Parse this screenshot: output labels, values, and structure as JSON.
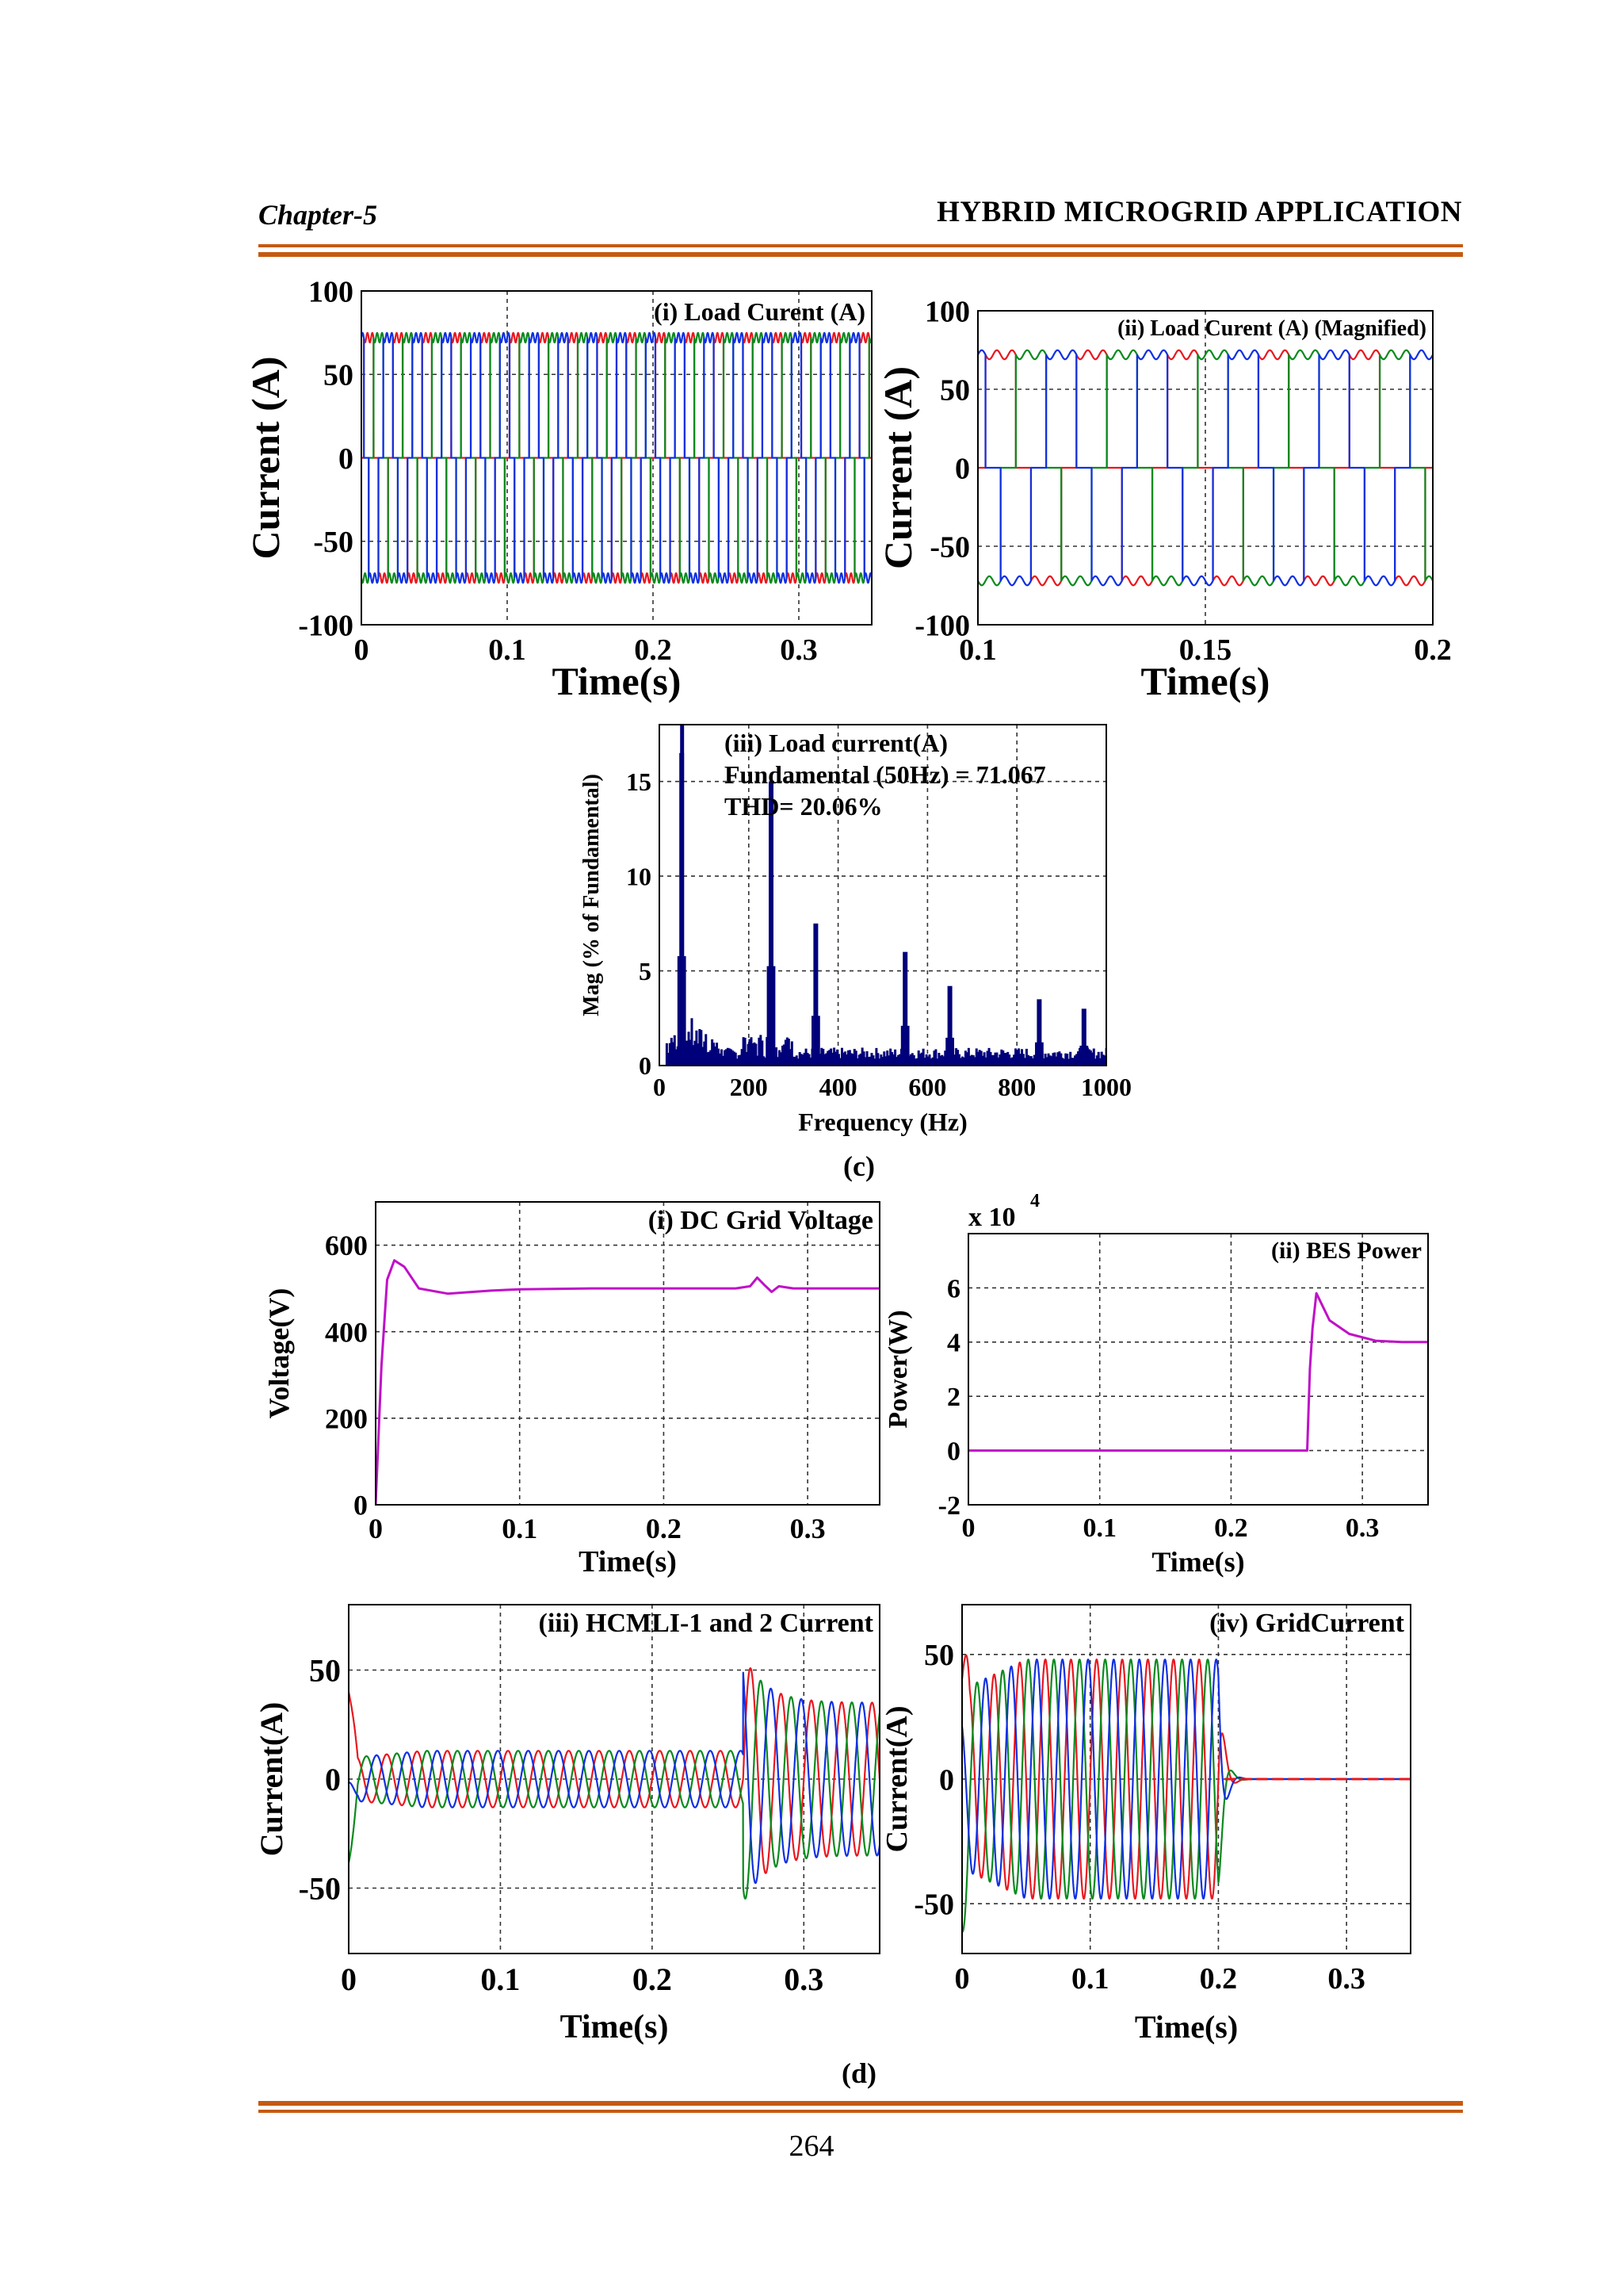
{
  "header": {
    "chapter": "Chapter-5",
    "title": "HYBRID MICROGRID APPLICATION"
  },
  "captions": {
    "c": "(c)",
    "d": "(d)"
  },
  "page_number": "264",
  "colors": {
    "red": "#e8171f",
    "green": "#0a8a1e",
    "blue": "#1030e0",
    "magenta": "#c010c8",
    "navy": "#00007a",
    "rule": "#c55a11"
  },
  "chart_data": [
    {
      "id": "load_current",
      "type": "line",
      "title": "(i) Load Curent (A)",
      "xlabel": "Time(s)",
      "ylabel": "Current (A)",
      "xlim": [
        0,
        0.35
      ],
      "ylim": [
        -100,
        100
      ],
      "xticks": [
        "0",
        "0.1",
        "0.2",
        "0.3"
      ],
      "yticks": [
        "100",
        "50",
        "0",
        "-50",
        "-100"
      ],
      "grid": true,
      "series": [
        {
          "color": "red",
          "waveform": "quasi-square",
          "amplitude": 72,
          "frequency_hz": 50,
          "phase_deg": 0
        },
        {
          "color": "green",
          "waveform": "quasi-square",
          "amplitude": 72,
          "frequency_hz": 50,
          "phase_deg": -120
        },
        {
          "color": "blue",
          "waveform": "quasi-square",
          "amplitude": 72,
          "frequency_hz": 50,
          "phase_deg": 120
        }
      ]
    },
    {
      "id": "load_current_magnified",
      "type": "line",
      "title": "(ii) Load Curent (A) (Magnified)",
      "xlabel": "Time(s)",
      "ylabel": "Current (A)",
      "xlim": [
        0.1,
        0.2
      ],
      "ylim": [
        -100,
        100
      ],
      "xticks": [
        "0.1",
        "0.15",
        "0.2"
      ],
      "yticks": [
        "100",
        "50",
        "0",
        "-50",
        "-100"
      ],
      "grid": true,
      "series": [
        {
          "color": "red",
          "waveform": "quasi-square",
          "amplitude": 72,
          "frequency_hz": 50,
          "phase_deg": 0
        },
        {
          "color": "green",
          "waveform": "quasi-square",
          "amplitude": 72,
          "frequency_hz": 50,
          "phase_deg": -120
        },
        {
          "color": "blue",
          "waveform": "quasi-square",
          "amplitude": 72,
          "frequency_hz": 50,
          "phase_deg": 120
        }
      ]
    },
    {
      "id": "load_current_fft",
      "type": "bar",
      "title": "(iii) Load current(A)",
      "annotations": [
        "Fundamental (50Hz) = 71.067",
        "THD= 20.06%"
      ],
      "xlabel": "Frequency (Hz)",
      "ylabel": "Mag (% of Fundamental)",
      "xlim": [
        0,
        1000
      ],
      "ylim": [
        0,
        18
      ],
      "xticks": [
        "0",
        "200",
        "400",
        "600",
        "800",
        "1000"
      ],
      "yticks": [
        "0",
        "5",
        "10",
        "15"
      ],
      "grid": true,
      "harmonics": {
        "frequency_hz": [
          50,
          250,
          350,
          550,
          650,
          850,
          950
        ],
        "magnitude_pct": [
          16.5,
          15.0,
          7.5,
          6.0,
          4.2,
          3.5,
          3.0
        ]
      }
    },
    {
      "id": "dc_grid_voltage",
      "type": "line",
      "title": "(i) DC Grid Voltage",
      "xlabel": "Time(s)",
      "ylabel": "Voltage(V)",
      "xlim": [
        0,
        0.35
      ],
      "ylim": [
        0,
        700
      ],
      "xticks": [
        "0",
        "0.1",
        "0.2",
        "0.3"
      ],
      "yticks": [
        "600",
        "400",
        "200",
        "0"
      ],
      "grid": true,
      "series": [
        {
          "color": "magenta",
          "x": [
            0,
            0.004,
            0.008,
            0.013,
            0.02,
            0.03,
            0.05,
            0.08,
            0.1,
            0.15,
            0.2,
            0.25,
            0.26,
            0.265,
            0.27,
            0.275,
            0.28,
            0.29,
            0.3,
            0.35
          ],
          "y": [
            0,
            320,
            520,
            565,
            550,
            500,
            488,
            495,
            498,
            500,
            500,
            500,
            505,
            525,
            508,
            492,
            505,
            500,
            500,
            500
          ]
        }
      ]
    },
    {
      "id": "bes_power",
      "type": "line",
      "title": "(ii) BES Power",
      "xlabel": "Time(s)",
      "ylabel": "Power(W)",
      "multiplier": "x 10",
      "multiplier_exp": "4",
      "xlim": [
        0,
        0.35
      ],
      "ylim": [
        -2,
        8
      ],
      "xticks": [
        "0",
        "0.1",
        "0.2",
        "0.3"
      ],
      "yticks": [
        "6",
        "4",
        "2",
        "0",
        "-2"
      ],
      "grid": true,
      "series": [
        {
          "color": "magenta",
          "x": [
            0,
            0.258,
            0.26,
            0.262,
            0.265,
            0.275,
            0.29,
            0.31,
            0.33,
            0.35
          ],
          "y": [
            0,
            0,
            3.0,
            4.5,
            5.8,
            4.8,
            4.3,
            4.05,
            4.0,
            4.0
          ]
        }
      ]
    },
    {
      "id": "hcmli_current",
      "type": "line",
      "title": "(iii) HCMLI-1 and 2 Current",
      "xlabel": "Time(s)",
      "ylabel": "Current(A)",
      "xlim": [
        0,
        0.35
      ],
      "ylim": [
        -80,
        80
      ],
      "xticks": [
        "0",
        "0.1",
        "0.2",
        "0.3"
      ],
      "yticks": [
        "50",
        "0",
        "-50"
      ],
      "grid": true,
      "series": [
        {
          "color": "red",
          "frequency_hz": 50,
          "phase_deg": 0,
          "amplitude_before": 13,
          "amplitude_after": 35,
          "step_time": 0.26
        },
        {
          "color": "green",
          "frequency_hz": 50,
          "phase_deg": -120,
          "amplitude_before": 13,
          "amplitude_after": 35,
          "step_time": 0.26
        },
        {
          "color": "blue",
          "frequency_hz": 50,
          "phase_deg": 120,
          "amplitude_before": 13,
          "amplitude_after": 35,
          "step_time": 0.26
        }
      ]
    },
    {
      "id": "grid_current",
      "type": "line",
      "title": "(iv) GridCurrent",
      "xlabel": "Time(s)",
      "ylabel": "Current(A)",
      "xlim": [
        0,
        0.35
      ],
      "ylim": [
        -70,
        70
      ],
      "xticks": [
        "0",
        "0.1",
        "0.2",
        "0.3"
      ],
      "yticks": [
        "50",
        "0",
        "-50"
      ],
      "grid": true,
      "series": [
        {
          "color": "red",
          "frequency_hz": 50,
          "phase_deg": 0,
          "amplitude_before": 48,
          "amplitude_after": 0,
          "step_time": 0.2
        },
        {
          "color": "green",
          "frequency_hz": 50,
          "phase_deg": -120,
          "amplitude_before": 48,
          "amplitude_after": 0,
          "step_time": 0.2
        },
        {
          "color": "blue",
          "frequency_hz": 50,
          "phase_deg": 120,
          "amplitude_before": 48,
          "amplitude_after": 0,
          "step_time": 0.2
        }
      ]
    }
  ]
}
